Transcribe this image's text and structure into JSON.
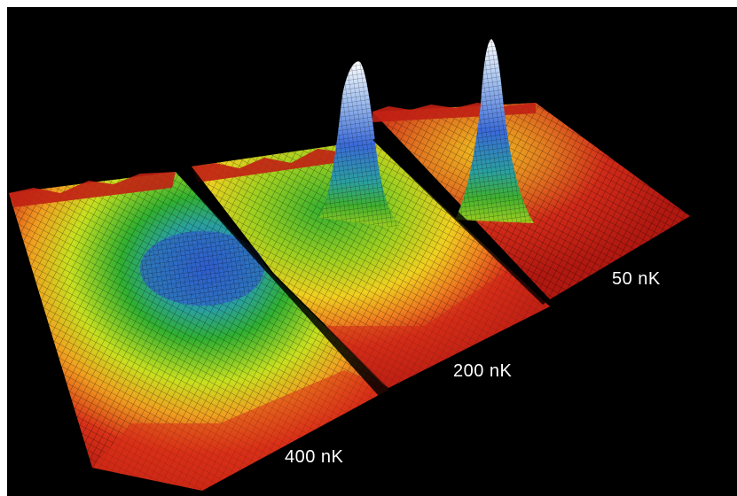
{
  "panels": [
    {
      "temperature_label": "400 nK",
      "peak": "broad"
    },
    {
      "temperature_label": "200 nK",
      "peak": "narrow-on-broad"
    },
    {
      "temperature_label": "50 nK",
      "peak": "narrow"
    }
  ],
  "colors": {
    "background": "#000000",
    "low": "#c81810",
    "mid_low": "#f0e020",
    "mid": "#30b030",
    "high": "#3060d0",
    "peak": "#ffffff"
  }
}
